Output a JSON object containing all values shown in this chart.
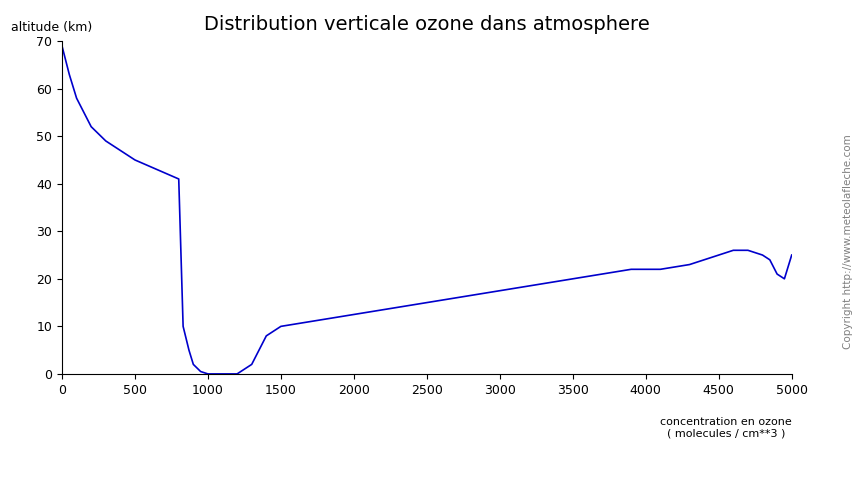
{
  "title": "Distribution verticale ozone dans atmosphere",
  "xlabel": "concentration en ozone\n( molecules / cm**3 )",
  "ylabel": "altitude (km)",
  "xlim": [
    0,
    5000
  ],
  "ylim": [
    0,
    70
  ],
  "xticks": [
    0,
    500,
    1000,
    1500,
    2000,
    2500,
    3000,
    3500,
    4000,
    4500,
    5000
  ],
  "yticks": [
    0,
    10,
    20,
    30,
    40,
    50,
    60,
    70
  ],
  "background_color": "#ffffff",
  "line_color": "#0000cc",
  "watermark": "Copyright http://www.meteolafleche.com",
  "curve_x": [
    0,
    50,
    100,
    200,
    300,
    500,
    800,
    830,
    870,
    900,
    950,
    1000,
    1100,
    1200,
    1300,
    1400,
    1500,
    1600,
    1700,
    1800,
    1900,
    2000,
    2100,
    2200,
    2300,
    2400,
    2500,
    2600,
    2700,
    2800,
    2900,
    3000,
    3100,
    3200,
    3300,
    3400,
    3500,
    3600,
    3700,
    3800,
    3900,
    4000,
    4100,
    4200,
    4300,
    4400,
    4500,
    4600,
    4700,
    4800,
    4850,
    4900,
    4950,
    5000
  ],
  "curve_y": [
    69,
    63,
    58,
    52,
    49,
    45,
    41,
    10,
    5,
    2,
    0.5,
    0,
    0,
    0,
    2,
    8,
    10,
    10.5,
    11,
    11.5,
    12,
    12.5,
    13,
    13.5,
    14,
    14.5,
    15,
    15.5,
    16,
    16.5,
    17,
    17.5,
    18,
    18.5,
    19,
    19.5,
    20,
    20.5,
    21,
    21.5,
    22,
    22,
    22,
    22.5,
    23,
    24,
    25,
    26,
    26,
    25,
    24,
    21,
    20,
    25
  ]
}
